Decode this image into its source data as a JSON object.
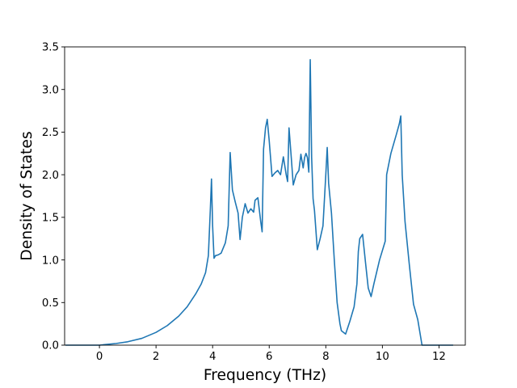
{
  "chart_data": {
    "type": "line",
    "title": "",
    "xlabel": "Frequency (THz)",
    "ylabel": "Density of States",
    "xlim": [
      -1.23,
      12.93
    ],
    "ylim": [
      0,
      3.5
    ],
    "xticks": [
      0,
      2,
      4,
      6,
      8,
      10,
      12
    ],
    "xtick_labels": [
      "0",
      "2",
      "4",
      "6",
      "8",
      "10",
      "12"
    ],
    "yticks": [
      0.0,
      0.5,
      1.0,
      1.5,
      2.0,
      2.5,
      3.0,
      3.5
    ],
    "ytick_labels": [
      "0.0",
      "0.5",
      "1.0",
      "1.5",
      "2.0",
      "2.5",
      "3.0",
      "3.5"
    ],
    "grid": false,
    "legend": "none",
    "line_color": "#1f77b4",
    "series": [
      {
        "x": [
          -1.2,
          -0.5,
          0.0,
          0.3,
          0.6,
          1.0,
          1.5,
          2.0,
          2.4,
          2.8,
          3.1,
          3.4,
          3.6,
          3.75,
          3.85,
          3.92,
          3.96,
          4.0,
          4.05,
          4.1,
          4.2,
          4.3,
          4.45,
          4.55,
          4.62,
          4.7,
          4.8,
          4.9,
          4.97,
          5.05,
          5.15,
          5.25,
          5.35,
          5.45,
          5.5,
          5.6,
          5.7,
          5.75,
          5.8,
          5.87,
          5.93,
          6.0,
          6.1,
          6.2,
          6.3,
          6.4,
          6.5,
          6.6,
          6.65,
          6.7,
          6.78,
          6.85,
          6.95,
          7.05,
          7.12,
          7.2,
          7.25,
          7.3,
          7.35,
          7.4,
          7.45,
          7.5,
          7.55,
          7.6,
          7.7,
          7.8,
          7.9,
          8.0,
          8.05,
          8.1,
          8.2,
          8.3,
          8.4,
          8.5,
          8.55,
          8.7,
          8.85,
          9.0,
          9.1,
          9.15,
          9.2,
          9.3,
          9.4,
          9.5,
          9.6,
          9.7,
          9.9,
          10.1,
          10.15,
          10.3,
          10.5,
          10.6,
          10.65,
          10.7,
          10.8,
          10.95,
          11.1,
          11.25,
          11.4,
          11.5,
          12.5
        ],
        "y": [
          0.0,
          0.0,
          0.0,
          0.01,
          0.02,
          0.04,
          0.08,
          0.15,
          0.23,
          0.34,
          0.45,
          0.6,
          0.72,
          0.85,
          1.05,
          1.6,
          1.95,
          1.4,
          1.02,
          1.05,
          1.06,
          1.08,
          1.2,
          1.4,
          2.26,
          1.82,
          1.68,
          1.55,
          1.24,
          1.5,
          1.66,
          1.55,
          1.6,
          1.56,
          1.7,
          1.73,
          1.45,
          1.33,
          2.3,
          2.55,
          2.65,
          2.4,
          1.98,
          2.02,
          2.05,
          2.0,
          2.21,
          2.0,
          1.92,
          2.55,
          2.2,
          1.88,
          2.0,
          2.05,
          2.24,
          2.08,
          2.2,
          2.25,
          2.2,
          2.03,
          3.35,
          2.2,
          1.72,
          1.58,
          1.12,
          1.25,
          1.4,
          2.0,
          2.32,
          1.9,
          1.55,
          1.0,
          0.5,
          0.25,
          0.17,
          0.13,
          0.28,
          0.45,
          0.72,
          1.1,
          1.25,
          1.3,
          0.98,
          0.67,
          0.57,
          0.72,
          1.0,
          1.22,
          2.0,
          2.25,
          2.48,
          2.6,
          2.69,
          2.0,
          1.45,
          0.95,
          0.48,
          0.3,
          0.0,
          0.0,
          0.0
        ]
      }
    ]
  }
}
